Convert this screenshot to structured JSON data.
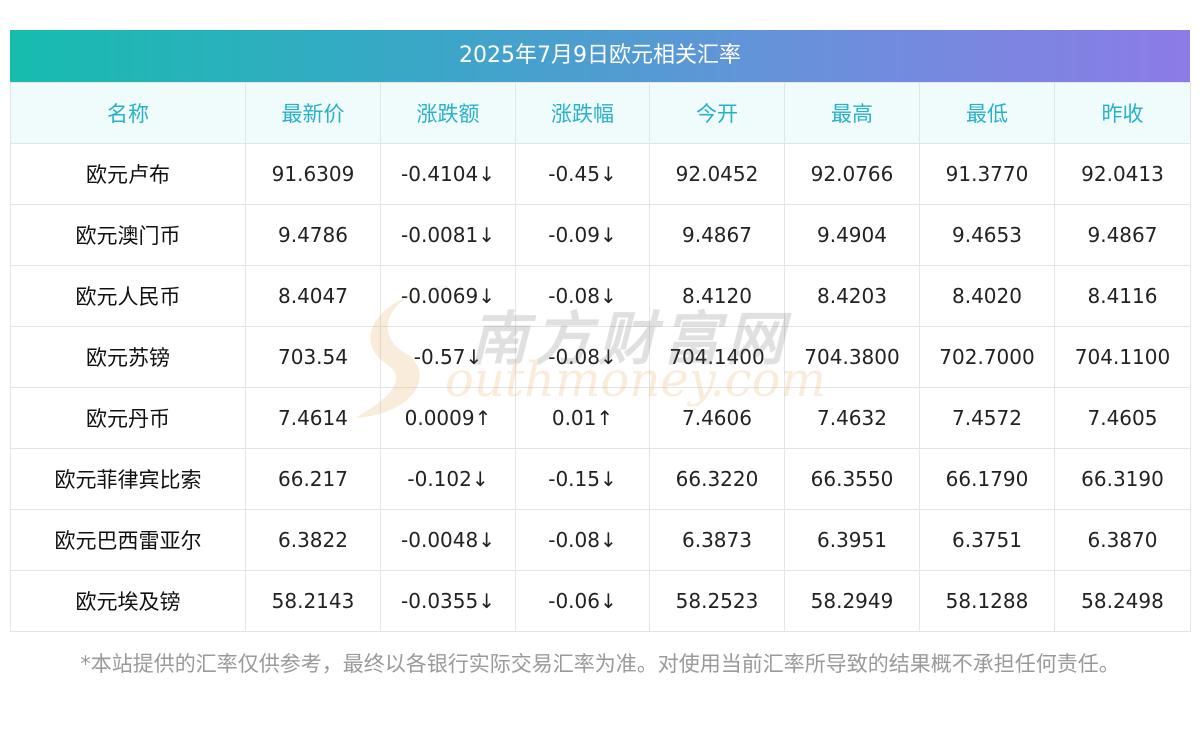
{
  "title": "2025年7月9日欧元相关汇率",
  "headers": [
    "名称",
    "最新价",
    "涨跌额",
    "涨跌幅",
    "今开",
    "最高",
    "最低",
    "昨收"
  ],
  "rows": [
    {
      "name": "欧元卢布",
      "latest": "91.6309",
      "change": "-0.4104↓",
      "pct": "-0.45↓",
      "open": "92.0452",
      "high": "92.0766",
      "low": "91.3770",
      "prev": "92.0413",
      "direction": "down"
    },
    {
      "name": "欧元澳门币",
      "latest": "9.4786",
      "change": "-0.0081↓",
      "pct": "-0.09↓",
      "open": "9.4867",
      "high": "9.4904",
      "low": "9.4653",
      "prev": "9.4867",
      "direction": "down"
    },
    {
      "name": "欧元人民币",
      "latest": "8.4047",
      "change": "-0.0069↓",
      "pct": "-0.08↓",
      "open": "8.4120",
      "high": "8.4203",
      "low": "8.4020",
      "prev": "8.4116",
      "direction": "down"
    },
    {
      "name": "欧元苏镑",
      "latest": "703.54",
      "change": "-0.57↓",
      "pct": "-0.08↓",
      "open": "704.1400",
      "high": "704.3800",
      "low": "702.7000",
      "prev": "704.1100",
      "direction": "down"
    },
    {
      "name": "欧元丹币",
      "latest": "7.4614",
      "change": "0.0009↑",
      "pct": "0.01↑",
      "open": "7.4606",
      "high": "7.4632",
      "low": "7.4572",
      "prev": "7.4605",
      "direction": "up"
    },
    {
      "name": "欧元菲律宾比索",
      "latest": "66.217",
      "change": "-0.102↓",
      "pct": "-0.15↓",
      "open": "66.3220",
      "high": "66.3550",
      "low": "66.1790",
      "prev": "66.3190",
      "direction": "down"
    },
    {
      "name": "欧元巴西雷亚尔",
      "latest": "6.3822",
      "change": "-0.0048↓",
      "pct": "-0.08↓",
      "open": "6.3873",
      "high": "6.3951",
      "low": "6.3751",
      "prev": "6.3870",
      "direction": "down"
    },
    {
      "name": "欧元埃及镑",
      "latest": "58.2143",
      "change": "-0.0355↓",
      "pct": "-0.06↓",
      "open": "58.2523",
      "high": "58.2949",
      "low": "58.1288",
      "prev": "58.2498",
      "direction": "down"
    }
  ],
  "watermark": {
    "cn": "南方财富网",
    "en": "outhmoney.com"
  },
  "disclaimer": "*本站提供的汇率仅供参考，最终以各银行实际交易汇率为准。对使用当前汇率所导致的结果概不承担任何责任。",
  "colors": {
    "title_gradient_start": "#17bcae",
    "title_gradient_end": "#8c7be6",
    "header_text": "#29b1c8",
    "header_bg": "#f0fbfc",
    "down": "#1f8f1f",
    "up": "#ee1c1c",
    "disclaimer": "#9a9a9a"
  }
}
